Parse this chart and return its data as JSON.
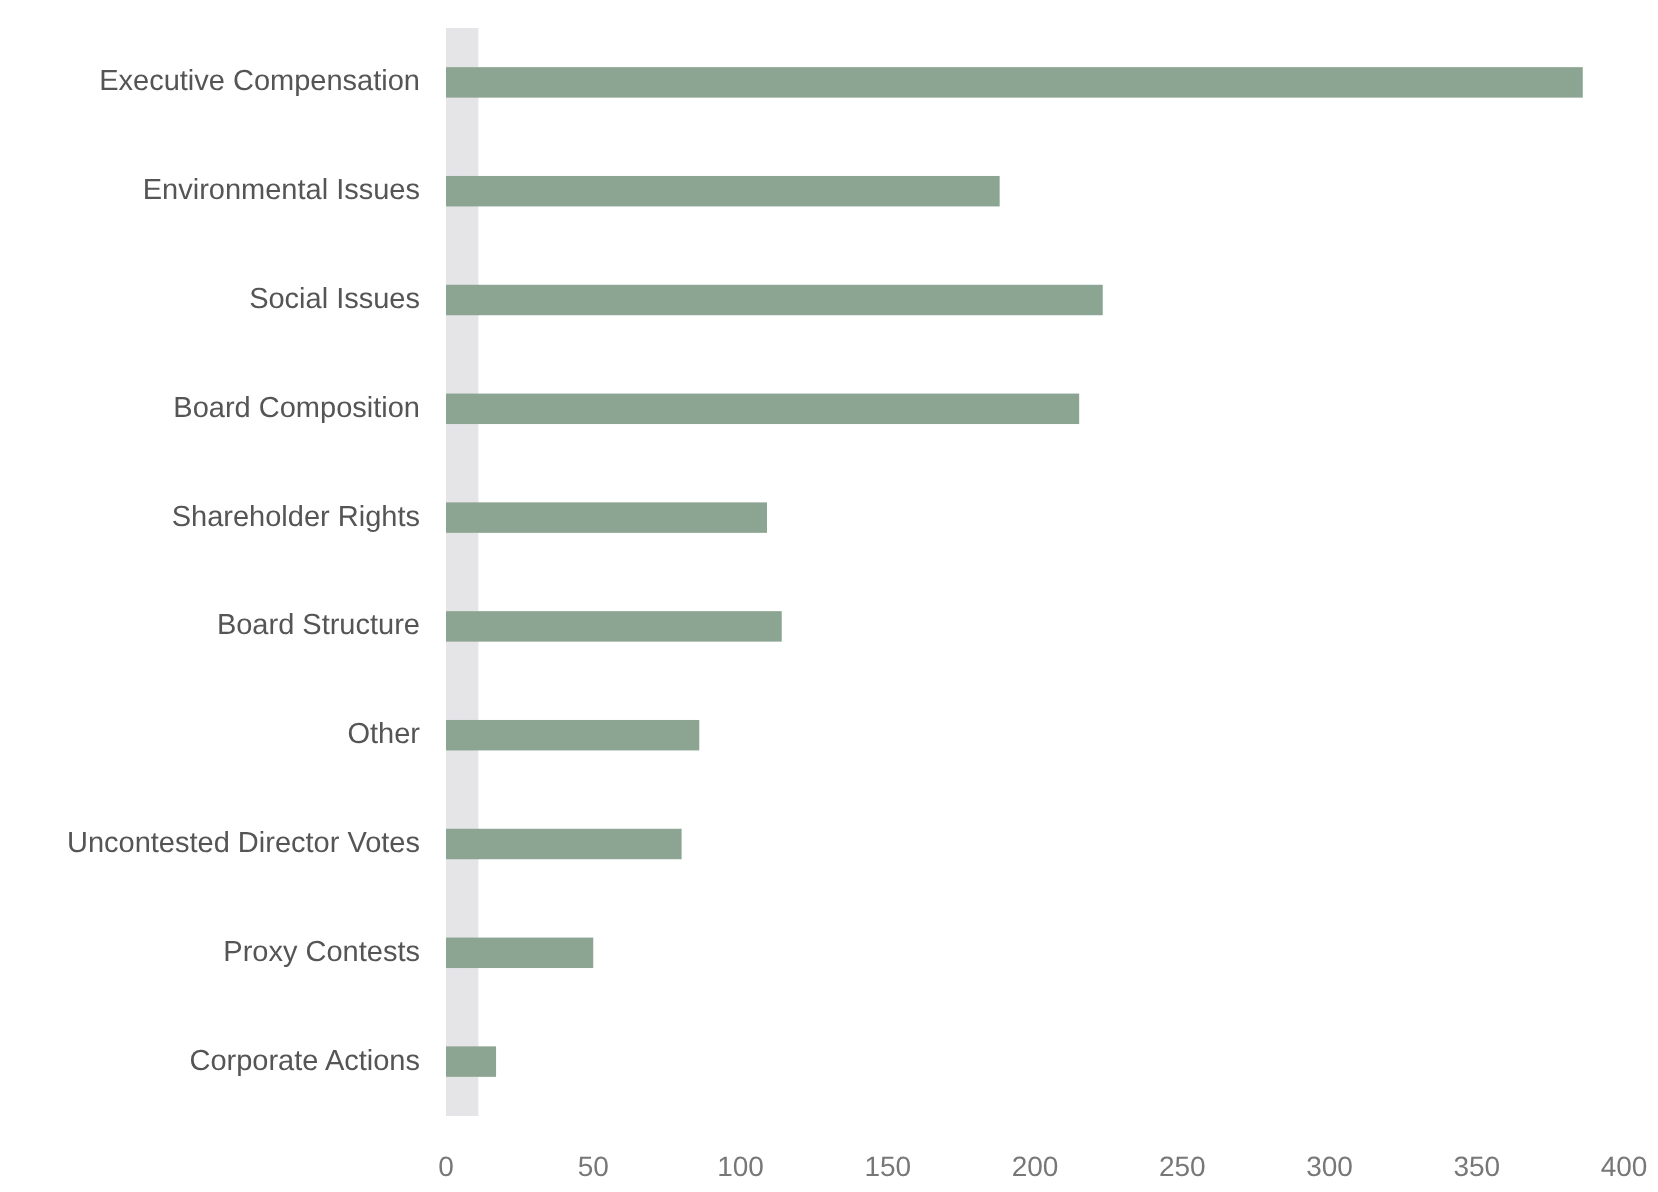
{
  "chart_data": {
    "type": "bar",
    "orientation": "horizontal",
    "categories": [
      "Executive Compensation",
      "Environmental Issues",
      "Social Issues",
      "Board Composition",
      "Shareholder Rights",
      "Board Structure",
      "Other",
      "Uncontested Director Votes",
      "Proxy Contests",
      "Corporate Actions"
    ],
    "values": [
      386,
      188,
      223,
      215,
      109,
      114,
      86,
      80,
      50,
      17
    ],
    "color": "#8ca593",
    "xlim": [
      0,
      400
    ],
    "xticks": [
      0,
      50,
      100,
      150,
      200,
      250,
      300,
      350,
      400
    ],
    "grid": false,
    "bands": [
      {
        "axis": "x",
        "from": 0,
        "to": 11,
        "color": "#e5e5e8"
      }
    ]
  }
}
